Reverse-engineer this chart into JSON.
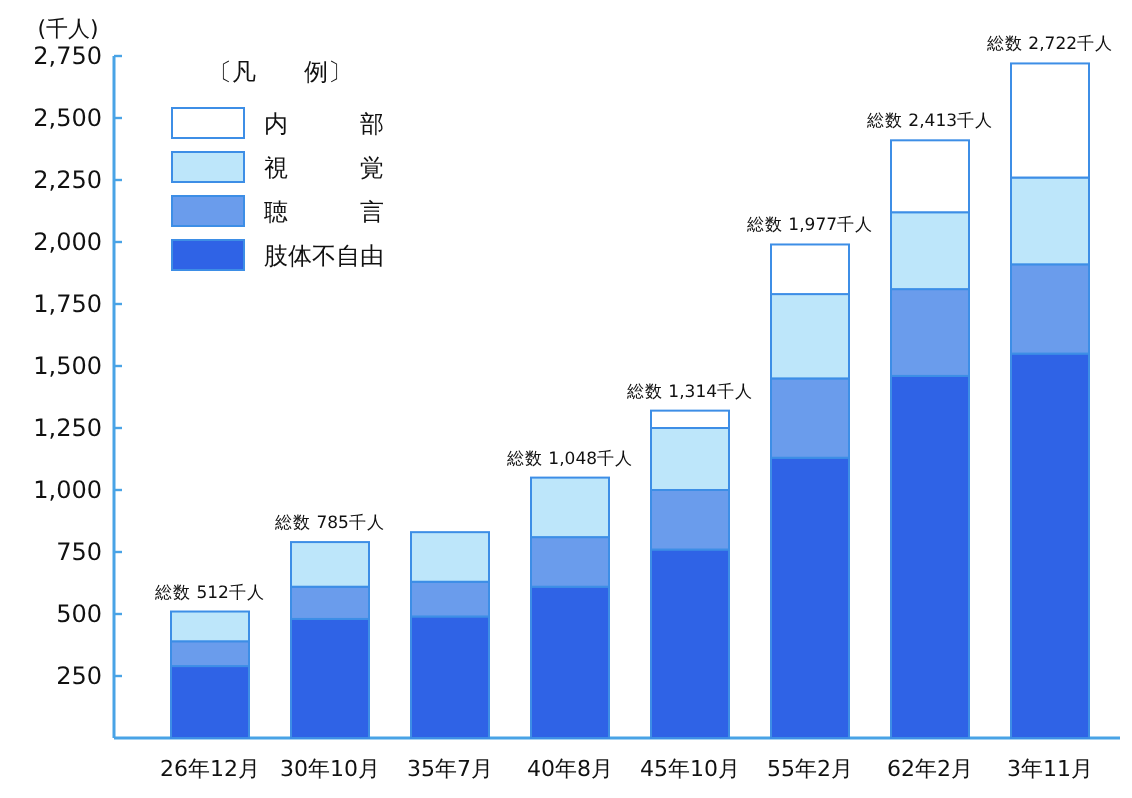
{
  "chart_data": {
    "type": "bar",
    "stacked": true,
    "ylabel": "(千人)",
    "legend_title": "〔凡　　例〕",
    "legend": "top left",
    "grid": false,
    "categories": [
      "26年12月",
      "30年10月",
      "35年7月",
      "40年8月",
      "45年10月",
      "55年2月",
      "62年2月",
      "3年11月"
    ],
    "ylim": [
      0,
      2750
    ],
    "yticks": [
      250,
      500,
      750,
      {
        "value": 1000,
        "label": "1,000"
      },
      {
        "value": 1250,
        "label": "1,250"
      },
      {
        "value": 1500,
        "label": "1,500"
      },
      {
        "value": 1750,
        "label": "1,750"
      },
      {
        "value": 2000,
        "label": "2,000"
      },
      {
        "value": 2250,
        "label": "2,250"
      },
      {
        "value": 2500,
        "label": "2,500"
      },
      {
        "value": 2750,
        "label": "2,750"
      }
    ],
    "series": [
      {
        "name": "肢体不自由",
        "color": "#2f63e6",
        "values": [
          290,
          480,
          490,
          610,
          760,
          1130,
          1460,
          1550
        ]
      },
      {
        "name": "聴　　　言",
        "color": "#6a9cec",
        "values": [
          100,
          130,
          140,
          200,
          240,
          320,
          350,
          360
        ]
      },
      {
        "name": "視　　　覚",
        "color": "#bde6fa",
        "values": [
          120,
          180,
          200,
          240,
          250,
          340,
          310,
          350
        ]
      },
      {
        "name": "内　　　部",
        "color": "#ffffff",
        "values": [
          null,
          null,
          null,
          null,
          70,
          200,
          290,
          460
        ]
      }
    ],
    "totals": [
      "総数 512千人",
      "総数 785千人",
      null,
      "総数 1,048千人",
      "総数 1,314千人",
      "総数 1,977千人",
      "総数 2,413千人",
      "総数 2,722千人"
    ]
  }
}
